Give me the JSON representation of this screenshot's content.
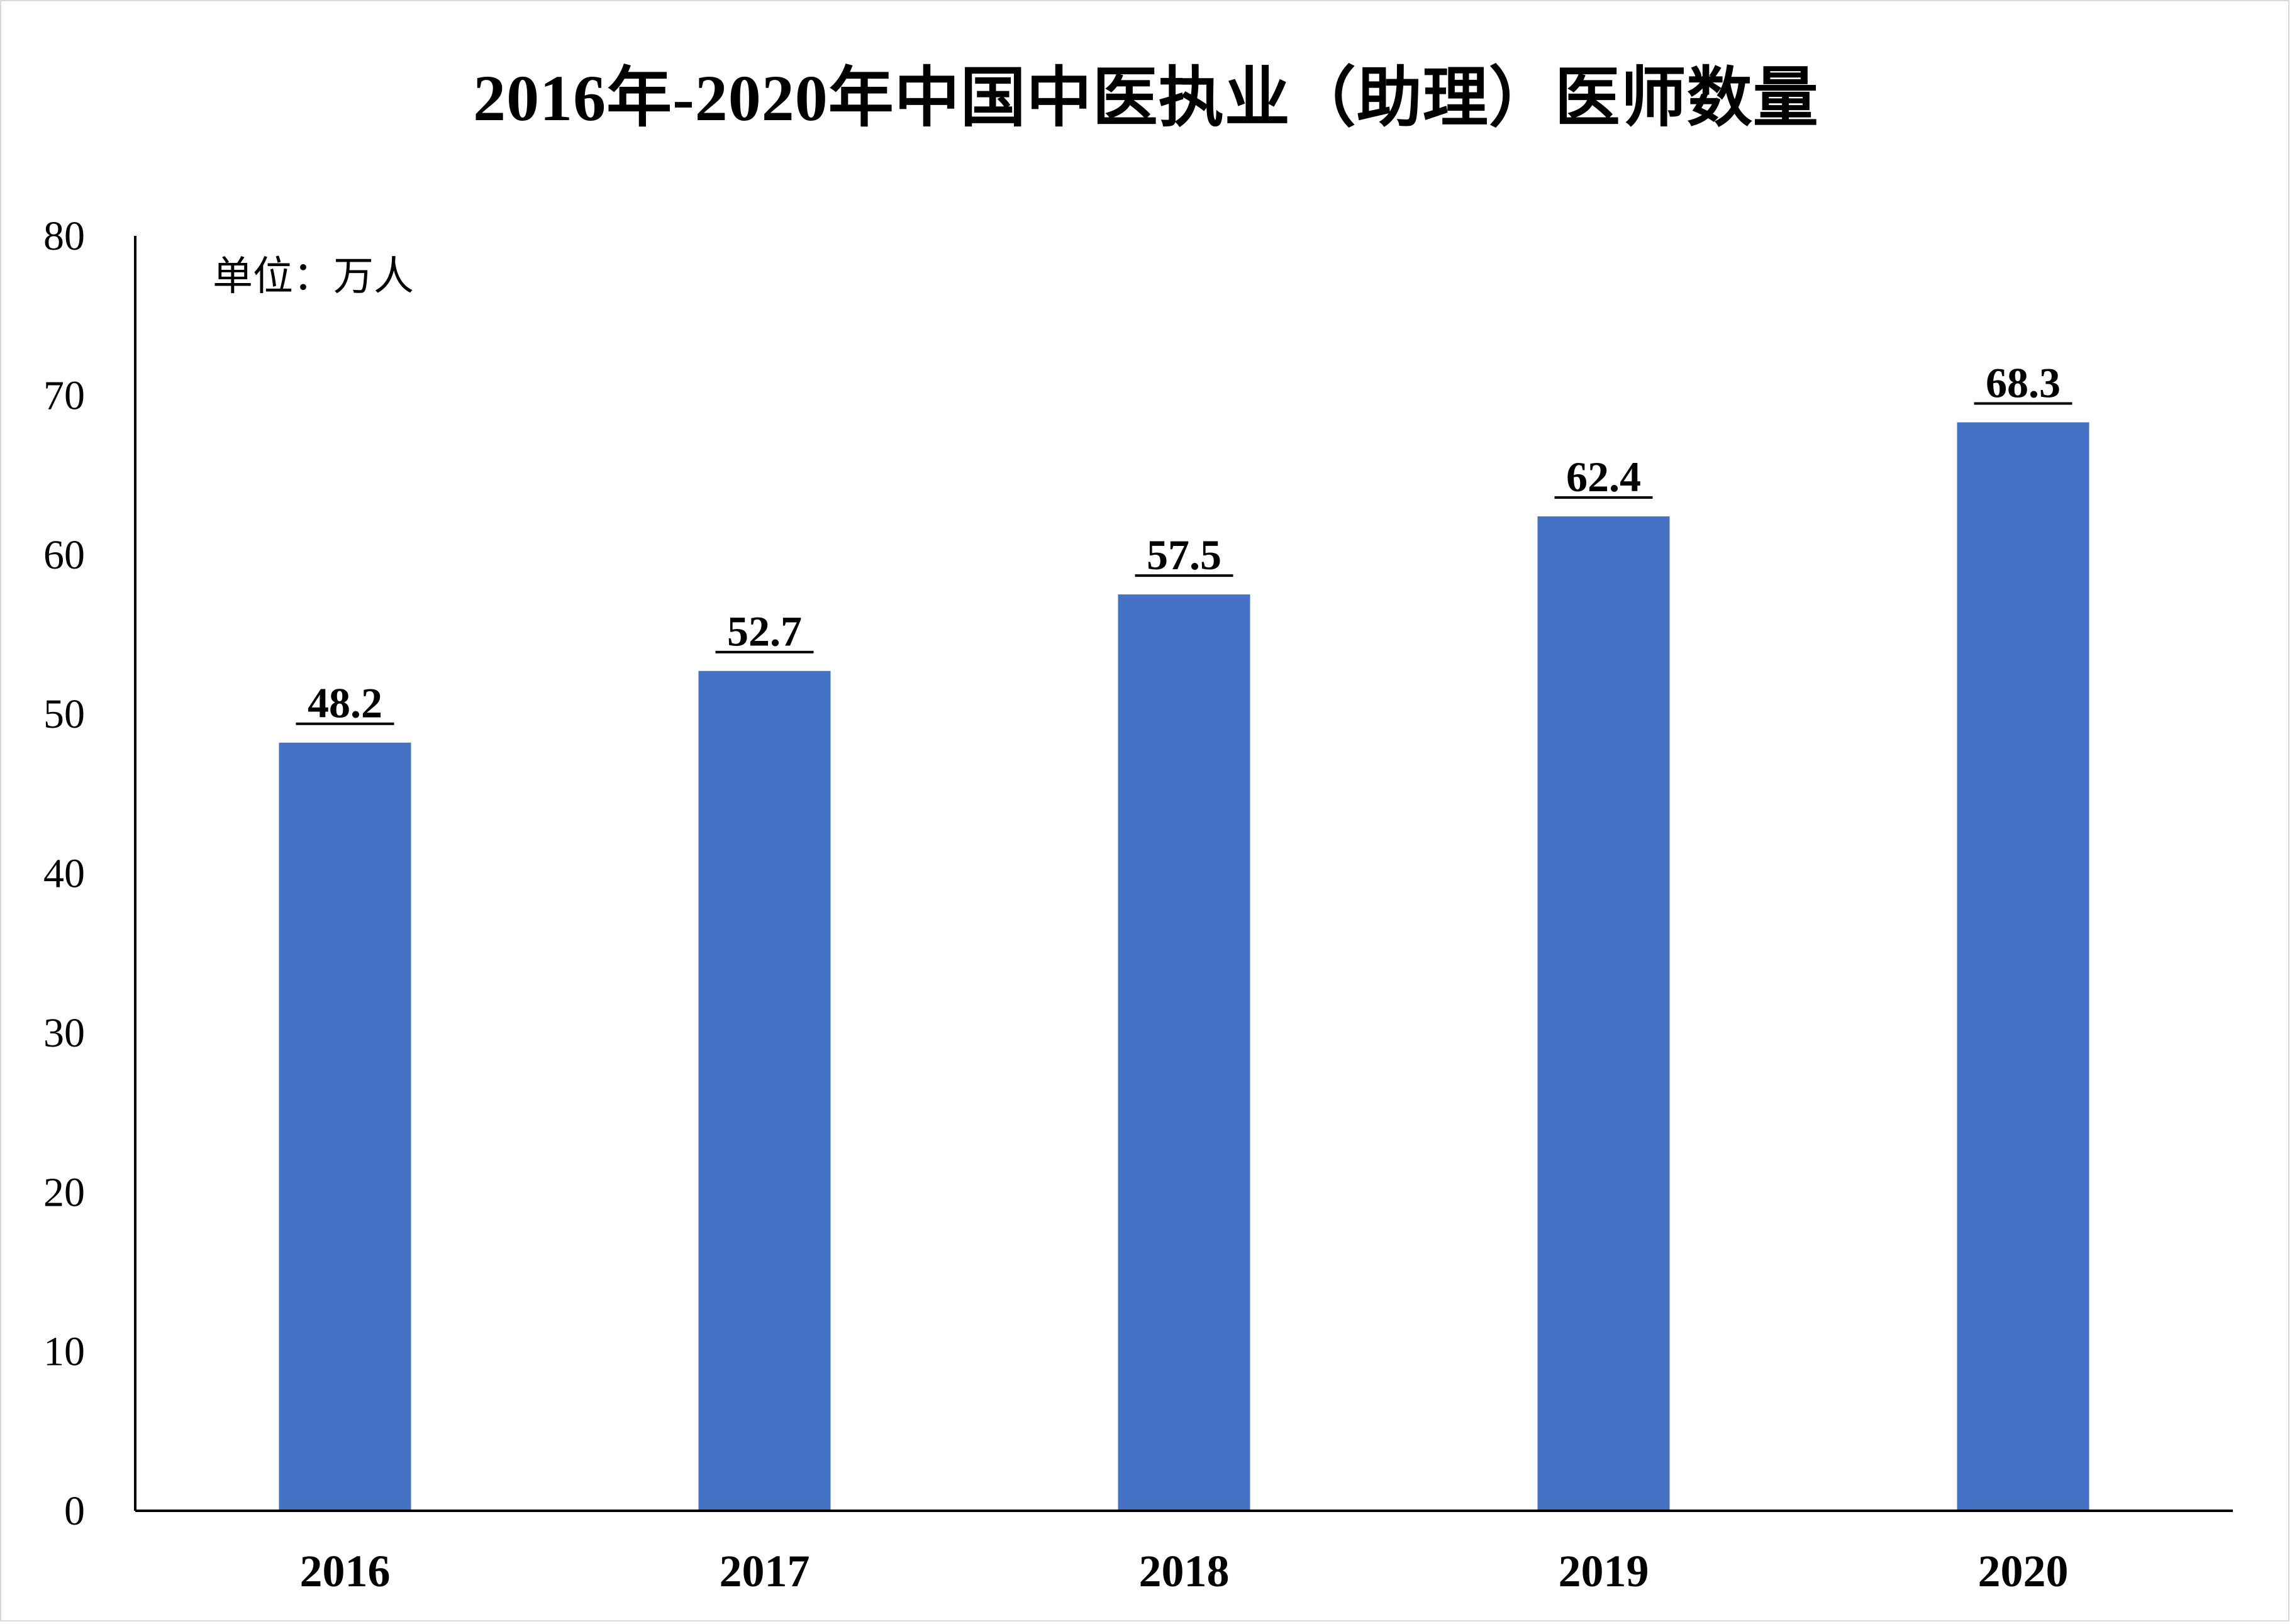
{
  "chart_data": {
    "type": "bar",
    "title": "2016年-2020年中国中医执业（助理）医师数量",
    "unit_label": "单位：万人",
    "categories": [
      "2016",
      "2017",
      "2018",
      "2019",
      "2020"
    ],
    "values": [
      48.2,
      52.7,
      57.5,
      62.4,
      68.3
    ],
    "data_labels": [
      "48.2",
      "52.7",
      "57.5",
      "62.4",
      "68.3"
    ],
    "ylim": [
      0,
      80
    ],
    "yticks": [
      0,
      10,
      20,
      30,
      40,
      50,
      60,
      70,
      80
    ],
    "xlabel": "",
    "ylabel": "",
    "grid": false,
    "legend": "none",
    "bar_color": "#4472C4",
    "axis_color": "#000000"
  }
}
